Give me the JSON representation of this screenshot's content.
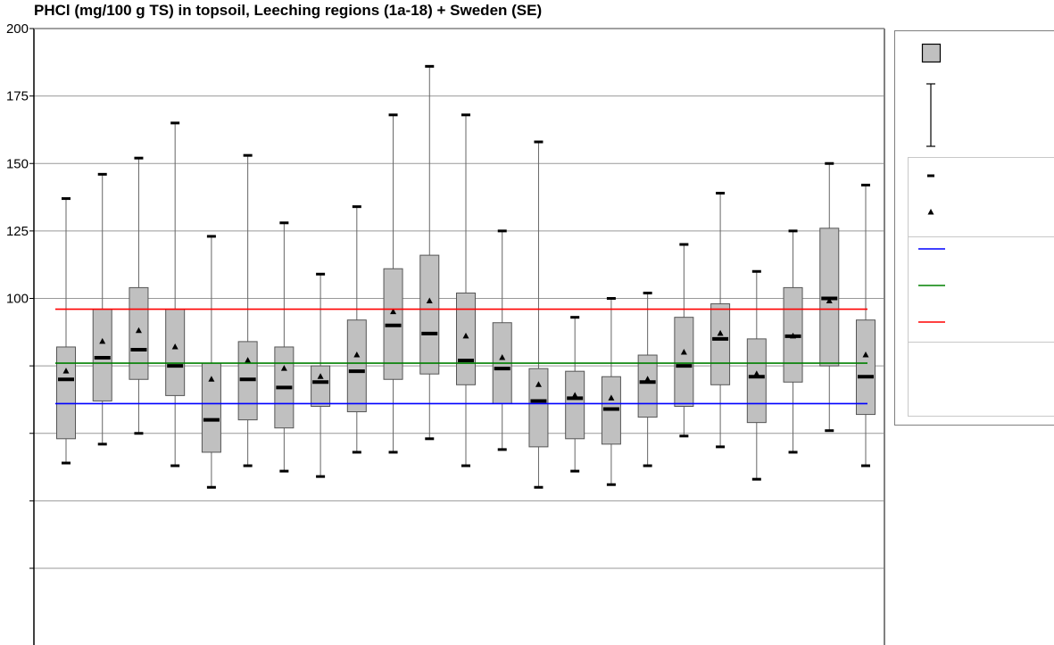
{
  "chart_data": {
    "type": "box",
    "title": "PHCl (mg/100 g TS) in topsoil, Leeching regions (1a-18) + Sweden (SE)",
    "ylim": [
      0,
      200
    ],
    "yticks": [
      200,
      175,
      150,
      125,
      100,
      75,
      50,
      25,
      0
    ],
    "ytick_labels": [
      "200",
      "175",
      "150",
      "125",
      "100",
      "",
      "",
      "",
      ""
    ],
    "grid": true,
    "boxes": [
      {
        "q1": 48,
        "q3": 82,
        "median": 70,
        "mean": 73,
        "min": 39,
        "max": 137
      },
      {
        "q1": 62,
        "q3": 96,
        "median": 78,
        "mean": 84,
        "min": 46,
        "max": 146
      },
      {
        "q1": 70,
        "q3": 104,
        "median": 81,
        "mean": 88,
        "min": 50,
        "max": 152
      },
      {
        "q1": 64,
        "q3": 96,
        "median": 75,
        "mean": 82,
        "min": 38,
        "max": 165
      },
      {
        "q1": 43,
        "q3": 76,
        "median": 55,
        "mean": 70,
        "min": 30,
        "max": 123
      },
      {
        "q1": 55,
        "q3": 84,
        "median": 70,
        "mean": 77,
        "min": 38,
        "max": 153
      },
      {
        "q1": 52,
        "q3": 82,
        "median": 67,
        "mean": 74,
        "min": 36,
        "max": 128
      },
      {
        "q1": 60,
        "q3": 75,
        "median": 69,
        "mean": 71,
        "min": 34,
        "max": 109
      },
      {
        "q1": 58,
        "q3": 92,
        "median": 73,
        "mean": 79,
        "min": 43,
        "max": 134
      },
      {
        "q1": 70,
        "q3": 111,
        "median": 90,
        "mean": 95,
        "min": 43,
        "max": 168
      },
      {
        "q1": 72,
        "q3": 116,
        "median": 87,
        "mean": 99,
        "min": 48,
        "max": 186
      },
      {
        "q1": 68,
        "q3": 102,
        "median": 77,
        "mean": 86,
        "min": 38,
        "max": 168
      },
      {
        "q1": 61,
        "q3": 91,
        "median": 74,
        "mean": 78,
        "min": 44,
        "max": 125
      },
      {
        "q1": 45,
        "q3": 74,
        "median": 62,
        "mean": 68,
        "min": 30,
        "max": 158
      },
      {
        "q1": 48,
        "q3": 73,
        "median": 63,
        "mean": 64,
        "min": 36,
        "max": 93
      },
      {
        "q1": 46,
        "q3": 71,
        "median": 59,
        "mean": 63,
        "min": 31,
        "max": 100
      },
      {
        "q1": 56,
        "q3": 79,
        "median": 69,
        "mean": 70,
        "min": 38,
        "max": 102
      },
      {
        "q1": 60,
        "q3": 93,
        "median": 75,
        "mean": 80,
        "min": 49,
        "max": 120
      },
      {
        "q1": 68,
        "q3": 98,
        "median": 85,
        "mean": 87,
        "min": 45,
        "max": 139
      },
      {
        "q1": 54,
        "q3": 85,
        "median": 71,
        "mean": 72,
        "min": 33,
        "max": 110
      },
      {
        "q1": 69,
        "q3": 104,
        "median": 86,
        "mean": 86,
        "min": 43,
        "max": 125
      },
      {
        "q1": 75,
        "q3": 126,
        "median": 100,
        "mean": 99,
        "min": 51,
        "max": 150
      },
      {
        "q1": 57,
        "q3": 92,
        "median": 71,
        "mean": 79,
        "min": 38,
        "max": 142
      }
    ],
    "reference_lines": [
      {
        "value": 61,
        "color": "#0000ff"
      },
      {
        "value": 76,
        "color": "#008000"
      },
      {
        "value": 96,
        "color": "#ff0000"
      }
    ],
    "colors": {
      "box_fill": "#c0c0c0",
      "box_stroke": "#555555",
      "whisker": "#666666",
      "grid": "#999999",
      "frame": "#808080",
      "marker": "#000000"
    }
  }
}
